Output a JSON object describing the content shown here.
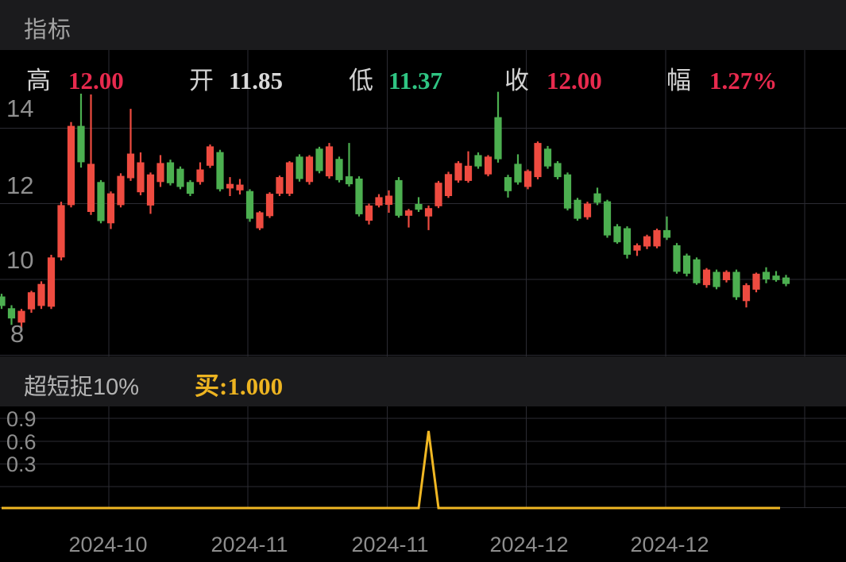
{
  "app": {
    "header": {
      "title": "指标"
    }
  },
  "main_chart": {
    "ohlc_readout": {
      "high_label": "高",
      "high_value": "12.00",
      "open_label": "开",
      "open_value": "11.85",
      "low_label": "低",
      "low_value": "11.37",
      "close_label": "收",
      "close_value": "12.00",
      "range_label": "幅",
      "range_value": "1.27%"
    },
    "y_ticks": [
      "14",
      "12",
      "10",
      "8"
    ],
    "x_ticks": [
      "2024-10",
      "2024-11",
      "2024-11",
      "2024-12",
      "2024-12"
    ]
  },
  "indicator_panel": {
    "name": "超短捉10%",
    "signal_label": "买:1.000",
    "y_ticks": [
      "0.9",
      "0.6",
      "0.3"
    ]
  },
  "colors": {
    "background": "#000000",
    "panel_bg": "#1b1b1d",
    "grid": "#2c2c33",
    "candle_up": "#ee4b40",
    "candle_down": "#4caf50",
    "text_red": "#e82a4e",
    "text_green": "#2fc583",
    "text_white": "#d9d9d9",
    "text_gray": "#8d8d8d",
    "signal_yellow": "#f0b723"
  },
  "chart_data": [
    {
      "type": "candlestick",
      "title": "日K主图 (daily K-line)",
      "convention": "red = up day, green = down day (CN)",
      "y_gridline_values": [
        14,
        12,
        10,
        8
      ],
      "ylim": [
        7.9,
        16.1
      ],
      "x_axis_labels": [
        "2024-10",
        "2024-11",
        "2024-11",
        "2024-12",
        "2024-12"
      ],
      "ohlc": [
        [
          9.55,
          9.62,
          9.22,
          9.3
        ],
        [
          9.24,
          9.32,
          8.8,
          8.97
        ],
        [
          8.86,
          9.22,
          8.7,
          9.17
        ],
        [
          9.21,
          9.7,
          9.12,
          9.66
        ],
        [
          9.3,
          9.95,
          9.22,
          9.88
        ],
        [
          9.28,
          10.65,
          9.22,
          10.58
        ],
        [
          10.58,
          12.05,
          10.5,
          11.96
        ],
        [
          11.96,
          14.15,
          11.9,
          14.05
        ],
        [
          14.05,
          14.9,
          12.95,
          13.09
        ],
        [
          11.78,
          14.88,
          11.7,
          13.05
        ],
        [
          12.57,
          12.62,
          11.48,
          11.54
        ],
        [
          11.48,
          12.32,
          11.33,
          12.27
        ],
        [
          11.96,
          12.8,
          11.9,
          12.73
        ],
        [
          12.67,
          14.5,
          12.6,
          13.32
        ],
        [
          12.3,
          13.35,
          12.22,
          13.09
        ],
        [
          11.95,
          12.82,
          11.73,
          12.77
        ],
        [
          12.57,
          13.28,
          12.44,
          13.07
        ],
        [
          13.09,
          13.16,
          12.48,
          12.54
        ],
        [
          12.92,
          12.98,
          12.38,
          12.44
        ],
        [
          12.57,
          12.62,
          12.2,
          12.26
        ],
        [
          12.57,
          13.09,
          12.5,
          12.9
        ],
        [
          13.0,
          13.56,
          12.94,
          13.51
        ],
        [
          13.36,
          13.42,
          12.32,
          12.38
        ],
        [
          12.4,
          12.7,
          12.2,
          12.52
        ],
        [
          12.35,
          12.65,
          12.24,
          12.5
        ],
        [
          12.33,
          12.38,
          11.52,
          11.6
        ],
        [
          11.35,
          11.8,
          11.3,
          11.77
        ],
        [
          11.67,
          12.3,
          11.62,
          12.26
        ],
        [
          12.26,
          12.74,
          12.2,
          12.7
        ],
        [
          12.26,
          13.12,
          12.2,
          13.09
        ],
        [
          13.24,
          13.3,
          12.58,
          12.65
        ],
        [
          12.57,
          13.28,
          12.5,
          13.24
        ],
        [
          13.45,
          13.5,
          12.8,
          12.86
        ],
        [
          12.72,
          13.6,
          12.66,
          13.51
        ],
        [
          13.18,
          13.24,
          12.56,
          12.62
        ],
        [
          12.72,
          13.6,
          12.45,
          12.51
        ],
        [
          12.66,
          12.72,
          11.66,
          11.72
        ],
        [
          11.55,
          12.0,
          11.45,
          11.95
        ],
        [
          11.95,
          12.25,
          11.9,
          12.17
        ],
        [
          11.97,
          12.35,
          11.76,
          12.21
        ],
        [
          12.62,
          12.7,
          11.63,
          11.68
        ],
        [
          11.68,
          11.86,
          11.37,
          11.82
        ],
        [
          11.99,
          12.17,
          11.78,
          11.84
        ],
        [
          11.66,
          11.95,
          11.3,
          11.88
        ],
        [
          11.93,
          12.6,
          11.88,
          12.55
        ],
        [
          12.2,
          12.84,
          12.15,
          12.78
        ],
        [
          12.61,
          13.12,
          12.55,
          13.07
        ],
        [
          12.6,
          13.38,
          12.55,
          13.0
        ],
        [
          13.28,
          13.35,
          12.92,
          12.98
        ],
        [
          12.77,
          13.28,
          12.72,
          13.24
        ],
        [
          14.28,
          14.95,
          13.08,
          13.17
        ],
        [
          12.7,
          12.76,
          12.16,
          12.33
        ],
        [
          13.05,
          13.3,
          12.5,
          12.56
        ],
        [
          12.44,
          12.9,
          12.38,
          12.86
        ],
        [
          12.7,
          13.64,
          12.64,
          13.6
        ],
        [
          13.45,
          13.52,
          12.92,
          12.98
        ],
        [
          13.07,
          13.12,
          12.64,
          12.7
        ],
        [
          12.77,
          12.82,
          11.82,
          11.87
        ],
        [
          12.1,
          12.15,
          11.55,
          11.6
        ],
        [
          11.64,
          12.05,
          11.58,
          12.0
        ],
        [
          12.27,
          12.42,
          11.96,
          12.02
        ],
        [
          12.06,
          12.1,
          11.1,
          11.16
        ],
        [
          11.4,
          11.46,
          10.94,
          10.98
        ],
        [
          11.35,
          11.4,
          10.55,
          10.65
        ],
        [
          10.76,
          10.95,
          10.62,
          10.9
        ],
        [
          10.87,
          11.18,
          10.8,
          11.14
        ],
        [
          10.87,
          11.34,
          10.82,
          11.3
        ],
        [
          11.3,
          11.66,
          11.04,
          11.1
        ],
        [
          10.9,
          10.96,
          10.15,
          10.2
        ],
        [
          10.63,
          10.68,
          10.08,
          10.15
        ],
        [
          10.53,
          10.58,
          9.86,
          9.9
        ],
        [
          9.85,
          10.3,
          9.78,
          10.26
        ],
        [
          10.2,
          10.26,
          9.74,
          9.8
        ],
        [
          9.98,
          10.24,
          9.92,
          10.2
        ],
        [
          10.2,
          10.26,
          9.46,
          9.53
        ],
        [
          9.43,
          9.9,
          9.26,
          9.85
        ],
        [
          9.73,
          10.18,
          9.66,
          10.15
        ],
        [
          10.2,
          10.32,
          9.9,
          10.0
        ],
        [
          10.1,
          10.22,
          9.94,
          9.98
        ],
        [
          10.05,
          10.12,
          9.82,
          9.88
        ]
      ]
    },
    {
      "type": "line",
      "title": "超短捉10% 买 signal",
      "y_gridline_values": [
        0.9,
        0.6,
        0.3,
        0
      ],
      "ylim": [
        0,
        1.3
      ],
      "values": [
        0,
        0,
        0,
        0,
        0,
        0,
        0,
        0,
        0,
        0,
        0,
        0,
        0,
        0,
        0,
        0,
        0,
        0,
        0,
        0,
        0,
        0,
        0,
        0,
        0,
        0,
        0,
        0,
        0,
        0,
        0,
        0,
        0,
        0,
        0,
        0,
        0,
        0,
        0,
        0,
        0,
        0,
        0,
        1,
        0,
        0,
        0,
        0,
        0,
        0,
        0,
        0,
        0,
        0,
        0,
        0,
        0,
        0,
        0,
        0,
        0,
        0,
        0,
        0,
        0,
        0,
        0,
        0,
        0,
        0,
        0,
        0,
        0,
        0,
        0,
        0,
        0,
        0,
        0,
        0
      ],
      "peak": {
        "index": 43,
        "value": 1.0
      }
    }
  ]
}
